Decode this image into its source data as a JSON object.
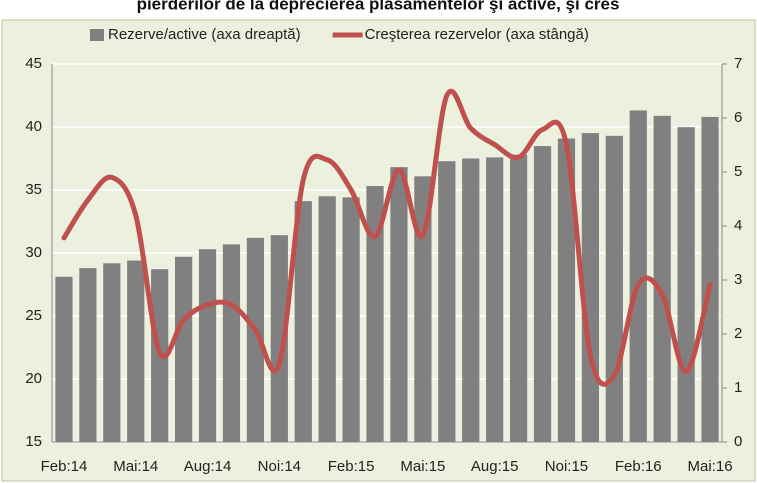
{
  "chart_data": {
    "type": "bar_line",
    "title": "pierderilor de la deprecierea plasamentelor şi active, şi cres",
    "categories": [
      "Feb:14",
      null,
      null,
      "Mai:14",
      null,
      null,
      "Aug:14",
      null,
      null,
      "Noi:14",
      null,
      null,
      "Feb:15",
      null,
      null,
      "Mai:15",
      null,
      null,
      "Aug:15",
      null,
      null,
      "Noi:15",
      null,
      null,
      "Feb:16",
      null,
      null,
      "Mai:16"
    ],
    "series": [
      {
        "name": "Rezerve/active (axa dreaptă)",
        "type": "bar",
        "axis": "y2",
        "color": "#808080",
        "values": [
          3.06,
          3.22,
          3.31,
          3.36,
          3.2,
          3.43,
          3.57,
          3.66,
          3.78,
          3.83,
          4.46,
          4.55,
          4.53,
          4.74,
          5.09,
          4.92,
          5.2,
          5.25,
          5.27,
          5.32,
          5.48,
          5.62,
          5.72,
          5.67,
          6.14,
          6.04,
          5.83,
          6.02
        ]
      },
      {
        "name": "Creşterea rezervelor (axa stângă)",
        "type": "line",
        "axis": "y",
        "color": "#c0504d",
        "values": [
          31.2,
          34.2,
          36.0,
          33.0,
          22.1,
          24.7,
          25.9,
          25.9,
          23.9,
          21.2,
          35.8,
          37.4,
          35.0,
          31.3,
          36.6,
          31.4,
          42.5,
          39.9,
          38.6,
          37.6,
          39.8,
          38.6,
          21.9,
          20.3,
          27.5,
          26.7,
          20.6,
          27.5
        ]
      }
    ],
    "ylim": [
      15,
      45
    ],
    "yticks": [
      15,
      20,
      25,
      30,
      35,
      40,
      45
    ],
    "y2lim": [
      0,
      7
    ],
    "y2ticks": [
      0,
      1,
      2,
      3,
      4,
      5,
      6,
      7
    ],
    "grid": true,
    "legend": "top"
  }
}
